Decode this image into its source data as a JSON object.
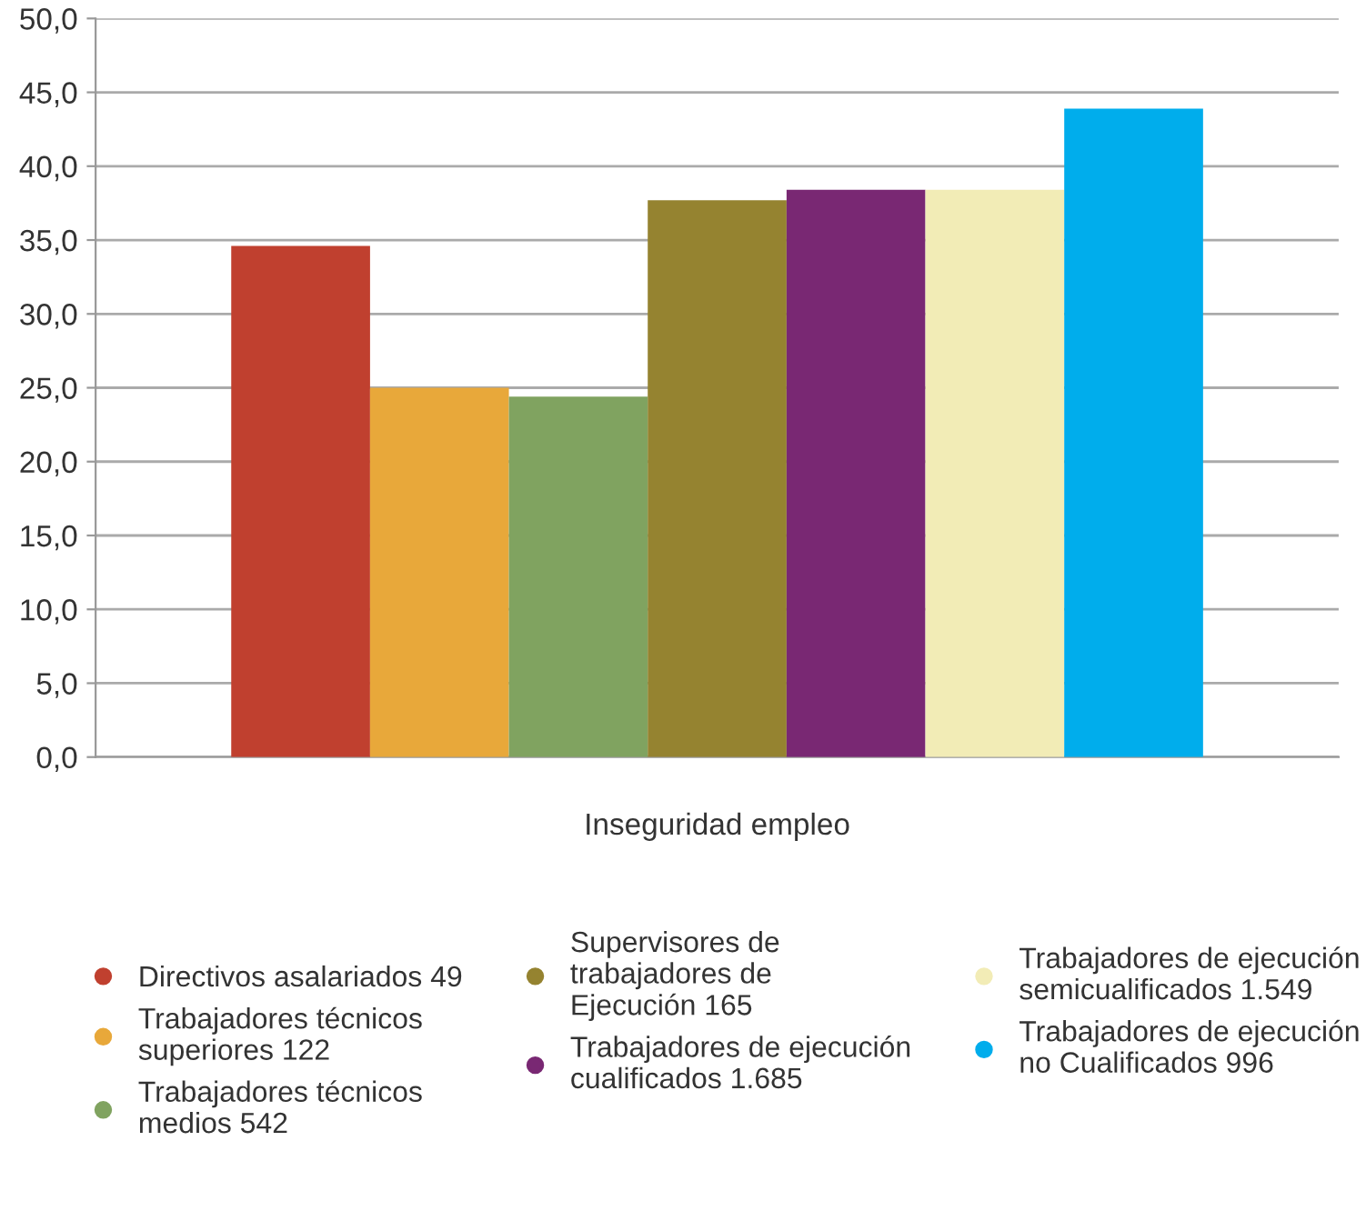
{
  "chart_data": {
    "type": "bar",
    "xlabel": null,
    "categories": [
      "Inseguridad empleo"
    ],
    "series": [
      {
        "name": "Directivos asalariados 49",
        "color": "#c0402f",
        "values": [
          34.6
        ]
      },
      {
        "name": "Trabajadores técnicos\nsuperiores 122",
        "color": "#e8a83a",
        "values": [
          25.0
        ]
      },
      {
        "name": "Trabajadores técnicos\nmedios 542",
        "color": "#80a360",
        "values": [
          24.4
        ]
      },
      {
        "name": "Supervisores de\ntrabajadores de\nEjecución 165",
        "color": "#958330",
        "values": [
          37.7
        ]
      },
      {
        "name": "Trabajadores de ejecución\ncualificados 1.685",
        "color": "#792873",
        "values": [
          38.4
        ]
      },
      {
        "name": "Trabajadores de ejecución\nsemicualificados 1.549",
        "color": "#f2ecb6",
        "values": [
          38.4
        ]
      },
      {
        "name": "Trabajadores de ejecución\nno Cualificados 996",
        "color": "#00adec",
        "values": [
          43.9
        ]
      }
    ],
    "ylim": [
      0,
      50
    ],
    "yticks": [
      {
        "value": 0,
        "label": "0,0"
      },
      {
        "value": 5,
        "label": "5,0"
      },
      {
        "value": 10,
        "label": "10,0"
      },
      {
        "value": 15,
        "label": "15,0"
      },
      {
        "value": 20,
        "label": "20,0"
      },
      {
        "value": 25,
        "label": "25,0"
      },
      {
        "value": 30,
        "label": "30,0"
      },
      {
        "value": 35,
        "label": "35,0"
      },
      {
        "value": 40,
        "label": "40,0"
      },
      {
        "value": 45,
        "label": "45,0"
      },
      {
        "value": 50,
        "label": "50,0"
      }
    ],
    "grid": "y",
    "legend": "bottom"
  }
}
